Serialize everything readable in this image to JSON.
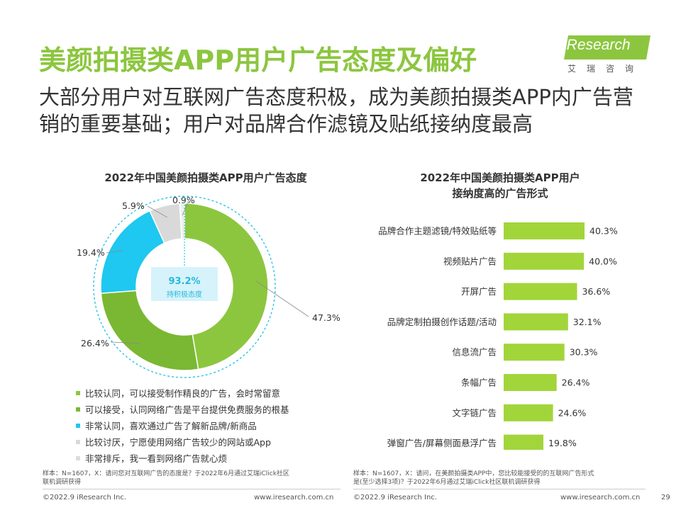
{
  "header": {
    "title": "美颜拍摄类APP用户广告态度及偏好",
    "subtitle": "大部分用户对互联网广告态度积极，成为美颜拍摄类APP内广告营销的重要基础；用户对品牌合作滤镜及贴纸接纳度最高"
  },
  "logo": {
    "brand": "iResearch",
    "cn": "艾瑞咨询"
  },
  "colors": {
    "green_dark": "#8cc63f",
    "green_mid": "#7ab833",
    "blue": "#1ec8f0",
    "gray": "#d9d9d9",
    "gray_light": "#efefef",
    "bar": "#a2d53a",
    "title_green": "#8cc63f"
  },
  "chart_data": [
    {
      "type": "pie",
      "title": "2022年中国美颜拍摄类APP用户广告态度",
      "center_value": "93.2%",
      "center_label": "持积极态度",
      "slices": [
        {
          "label": "比较认同，可以接受制作精良的广告，会时常留意",
          "value": 47.3,
          "display": "47.3%",
          "color": "#8cc63f"
        },
        {
          "label": "可以接受，认同网络广告是平台提供免费服务的根基",
          "value": 26.4,
          "display": "26.4%",
          "color": "#7ab833"
        },
        {
          "label": "非常认同，喜欢通过广告了解新品牌/新商品",
          "value": 19.4,
          "display": "19.4%",
          "color": "#1ec8f0"
        },
        {
          "label": "比较讨厌，宁愿使用网络广告较少的网站或App",
          "value": 5.9,
          "display": "5.9%",
          "color": "#d9d9d9"
        },
        {
          "label": "非常排斥，我一看到网络广告就心烦",
          "value": 0.9,
          "display": "0.9%",
          "color": "#efefef"
        }
      ]
    },
    {
      "type": "bar",
      "orientation": "horizontal",
      "title_lines": [
        "2022年中国美颜拍摄类APP用户",
        "接纳度高的广告形式"
      ],
      "categories": [
        "品牌合作主题滤镜/特效贴纸等",
        "视频贴片广告",
        "开屏广告",
        "品牌定制拍摄创作话题/活动",
        "信息流广告",
        "条幅广告",
        "文字链广告",
        "弹窗广告/屏幕侧面悬浮广告"
      ],
      "values": [
        40.3,
        40.0,
        36.6,
        32.1,
        30.3,
        26.4,
        24.6,
        19.8
      ],
      "labels": [
        "40.3%",
        "40.0%",
        "36.6%",
        "32.1%",
        "30.3%",
        "26.4%",
        "24.6%",
        "19.8%"
      ],
      "xlim": [
        0,
        40.3
      ]
    }
  ],
  "notes": {
    "left": [
      "样本：N=1607，X：请问您对互联网广告的态度是？于2022年6月通过艾瑞iClick社区",
      "联机调研获得"
    ],
    "right": [
      "样本：N=1607，X：请问，在美颜拍摄类APP中，您比较能接受的的互联网广告形式",
      "是(至少选择3项)？于2022年6月通过艾瑞iClick社区联机调研获得"
    ]
  },
  "footer": {
    "copyright_left": "©2022.9 iResearch Inc.",
    "url_left": "www.iresearch.com.cn",
    "copyright_right": "©2022.9 iResearch Inc.",
    "url_right": "www.iresearch.com.cn",
    "page": "29"
  }
}
